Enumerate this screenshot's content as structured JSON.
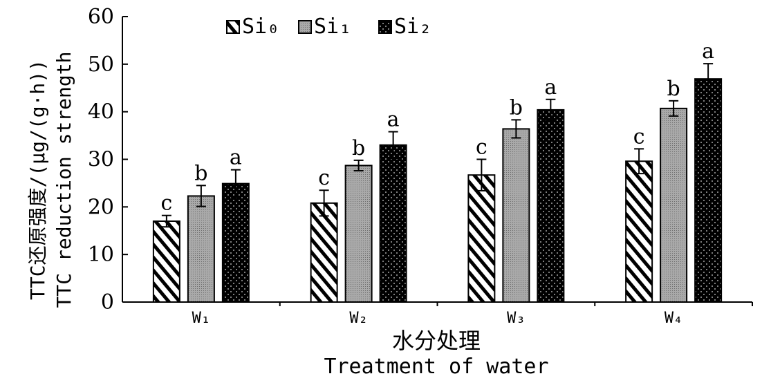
{
  "chart_data": {
    "type": "bar",
    "categories": [
      "W1",
      "W2",
      "W3",
      "W4"
    ],
    "series": [
      {
        "name": "Si0",
        "values": [
          17.0,
          20.8,
          26.7,
          29.6
        ],
        "errors": [
          1.2,
          2.7,
          3.3,
          2.6
        ],
        "letters": [
          "c",
          "c",
          "c",
          "c"
        ],
        "pattern": "diagonal-hatch"
      },
      {
        "name": "Si1",
        "values": [
          22.3,
          28.7,
          36.4,
          40.7
        ],
        "errors": [
          2.2,
          1.1,
          1.9,
          1.6
        ],
        "letters": [
          "b",
          "b",
          "b",
          "b"
        ],
        "pattern": "fine-dots-gray"
      },
      {
        "name": "Si2",
        "values": [
          24.9,
          33.0,
          40.4,
          46.9
        ],
        "errors": [
          2.9,
          2.8,
          2.2,
          3.2
        ],
        "letters": [
          "a",
          "a",
          "a",
          "a"
        ],
        "pattern": "black-dotted"
      }
    ],
    "ylim": [
      0,
      60
    ],
    "yticks": [
      0,
      10,
      20,
      30,
      40,
      50,
      60
    ],
    "ylabel_cn": "TTC还原强度/(μg/(g·h))",
    "ylabel_en": "TTC reduction strength",
    "xlabel_cn": "水分处理",
    "xlabel_en": "Treatment of water",
    "legend_position": "top-left",
    "grid": false
  }
}
